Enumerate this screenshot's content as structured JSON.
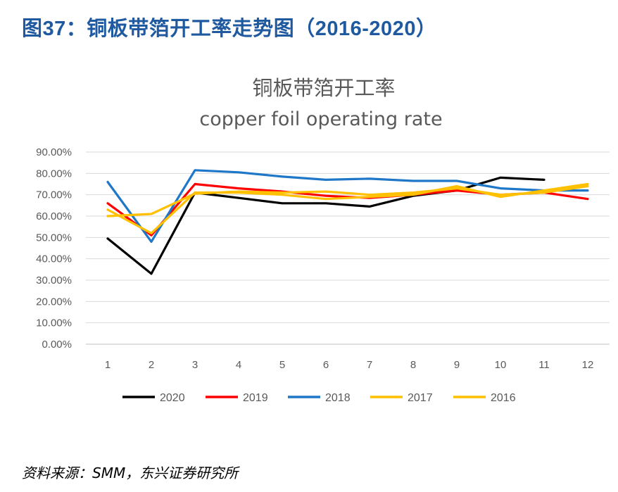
{
  "figure_title": "图37：铜板带箔开工率走势图（2016-2020）",
  "source_note": "资料来源：SMM，东兴证券研究所",
  "chart_data": {
    "type": "line",
    "title": "铜板带箔开工率",
    "subtitle": "copper foil operating rate",
    "xlabel": "",
    "ylabel": "",
    "categories": [
      "1",
      "2",
      "3",
      "4",
      "5",
      "6",
      "7",
      "8",
      "9",
      "10",
      "11",
      "12"
    ],
    "yticks": [
      "0.00%",
      "10.00%",
      "20.00%",
      "30.00%",
      "40.00%",
      "50.00%",
      "60.00%",
      "70.00%",
      "80.00%",
      "90.00%"
    ],
    "ylim": [
      0,
      90
    ],
    "grid": true,
    "legend_position": "bottom",
    "series": [
      {
        "name": "2020",
        "color": "#000000",
        "values": [
          49.5,
          33,
          71,
          68.5,
          66,
          66,
          64.5,
          69.5,
          72,
          78,
          77,
          null
        ]
      },
      {
        "name": "2019",
        "color": "#ff0000",
        "values": [
          66,
          51,
          75,
          73,
          71.5,
          69.5,
          68.5,
          70,
          72,
          70,
          71,
          68
        ]
      },
      {
        "name": "2018",
        "color": "#1f77c8",
        "values": [
          76,
          48,
          81.5,
          80.5,
          78.5,
          77,
          77.5,
          76.5,
          76.5,
          73,
          72,
          72
        ]
      },
      {
        "name": "2017",
        "color": "#ffc000",
        "values": [
          63,
          52,
          71,
          71,
          70,
          68,
          69,
          70,
          74,
          69,
          72,
          75
        ]
      },
      {
        "name": "2016",
        "color": "#ffc000",
        "values": [
          60,
          61,
          70.5,
          71.5,
          71,
          71.5,
          70,
          71,
          73,
          70,
          71,
          74
        ]
      }
    ]
  }
}
